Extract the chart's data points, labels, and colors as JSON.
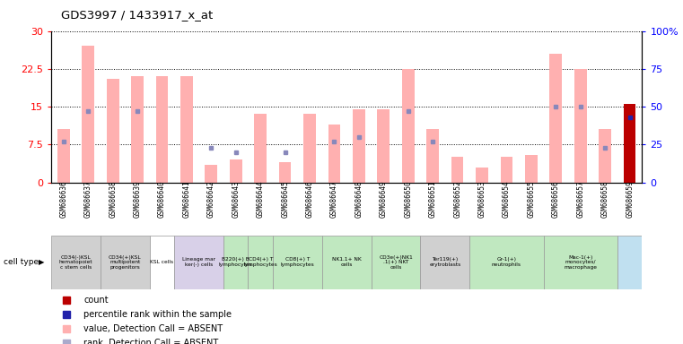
{
  "title": "GDS3997 / 1433917_x_at",
  "gsm_labels": [
    "GSM686636",
    "GSM686637",
    "GSM686638",
    "GSM686639",
    "GSM686640",
    "GSM686641",
    "GSM686642",
    "GSM686643",
    "GSM686644",
    "GSM686645",
    "GSM686646",
    "GSM686647",
    "GSM686648",
    "GSM686649",
    "GSM686650",
    "GSM686651",
    "GSM686652",
    "GSM686653",
    "GSM686654",
    "GSM686655",
    "GSM686656",
    "GSM686657",
    "GSM686658",
    "GSM686659"
  ],
  "pink_values": [
    10.5,
    27.0,
    20.5,
    21.0,
    21.0,
    21.0,
    3.5,
    4.5,
    13.5,
    4.0,
    13.5,
    11.5,
    14.5,
    14.5,
    22.5,
    10.5,
    5.0,
    3.0,
    5.0,
    5.5,
    25.5,
    22.5,
    10.5,
    0.0
  ],
  "blue_pct": [
    27,
    47,
    null,
    47,
    null,
    null,
    23,
    20,
    null,
    20,
    null,
    27,
    30,
    null,
    47,
    27,
    null,
    null,
    null,
    null,
    50,
    50,
    23,
    43
  ],
  "red_bar_idx": 23,
  "red_bar_value": 15.5,
  "red_bar_pct": 43,
  "cell_groups": [
    {
      "label": "CD34(-)KSL\nhematopoiet\nc stem cells",
      "color": "#d0d0d0",
      "start": 0,
      "end": 1
    },
    {
      "label": "CD34(+)KSL\nmultipotent\nprogenitors",
      "color": "#d0d0d0",
      "start": 2,
      "end": 3
    },
    {
      "label": "KSL cells",
      "color": "#ffffff",
      "start": 4,
      "end": 4
    },
    {
      "label": "Lineage mar\nker(-) cells",
      "color": "#d8d0e8",
      "start": 5,
      "end": 6
    },
    {
      "label": "B220(+) B\nlymphocytes",
      "color": "#c0e8c0",
      "start": 7,
      "end": 7
    },
    {
      "label": "CD4(+) T\nlymphocytes",
      "color": "#c0e8c0",
      "start": 8,
      "end": 8
    },
    {
      "label": "CD8(+) T\nlymphocytes",
      "color": "#c0e8c0",
      "start": 9,
      "end": 10
    },
    {
      "label": "NK1.1+ NK\ncells",
      "color": "#c0e8c0",
      "start": 11,
      "end": 12
    },
    {
      "label": "CD3e(+)NK1\n.1(+) NKT\ncells",
      "color": "#c0e8c0",
      "start": 13,
      "end": 14
    },
    {
      "label": "Ter119(+)\nerytroblasts",
      "color": "#d0d0d0",
      "start": 15,
      "end": 16
    },
    {
      "label": "Gr-1(+)\nneutrophils",
      "color": "#c0e8c0",
      "start": 17,
      "end": 19
    },
    {
      "label": "Mac-1(+)\nmonocytes/\nmacrophage",
      "color": "#c0e8c0",
      "start": 20,
      "end": 22
    },
    {
      "label": "",
      "color": "#c0e0f0",
      "start": 23,
      "end": 23
    }
  ],
  "ylim_left": [
    0,
    30
  ],
  "yticks_left": [
    0,
    7.5,
    15,
    22.5,
    30
  ],
  "yticks_right": [
    0,
    25,
    50,
    75,
    100
  ],
  "pink_color": "#ffb0b0",
  "blue_color": "#8888bb",
  "red_color": "#bb0000",
  "dark_blue_color": "#2222aa",
  "background_color": "#ffffff"
}
